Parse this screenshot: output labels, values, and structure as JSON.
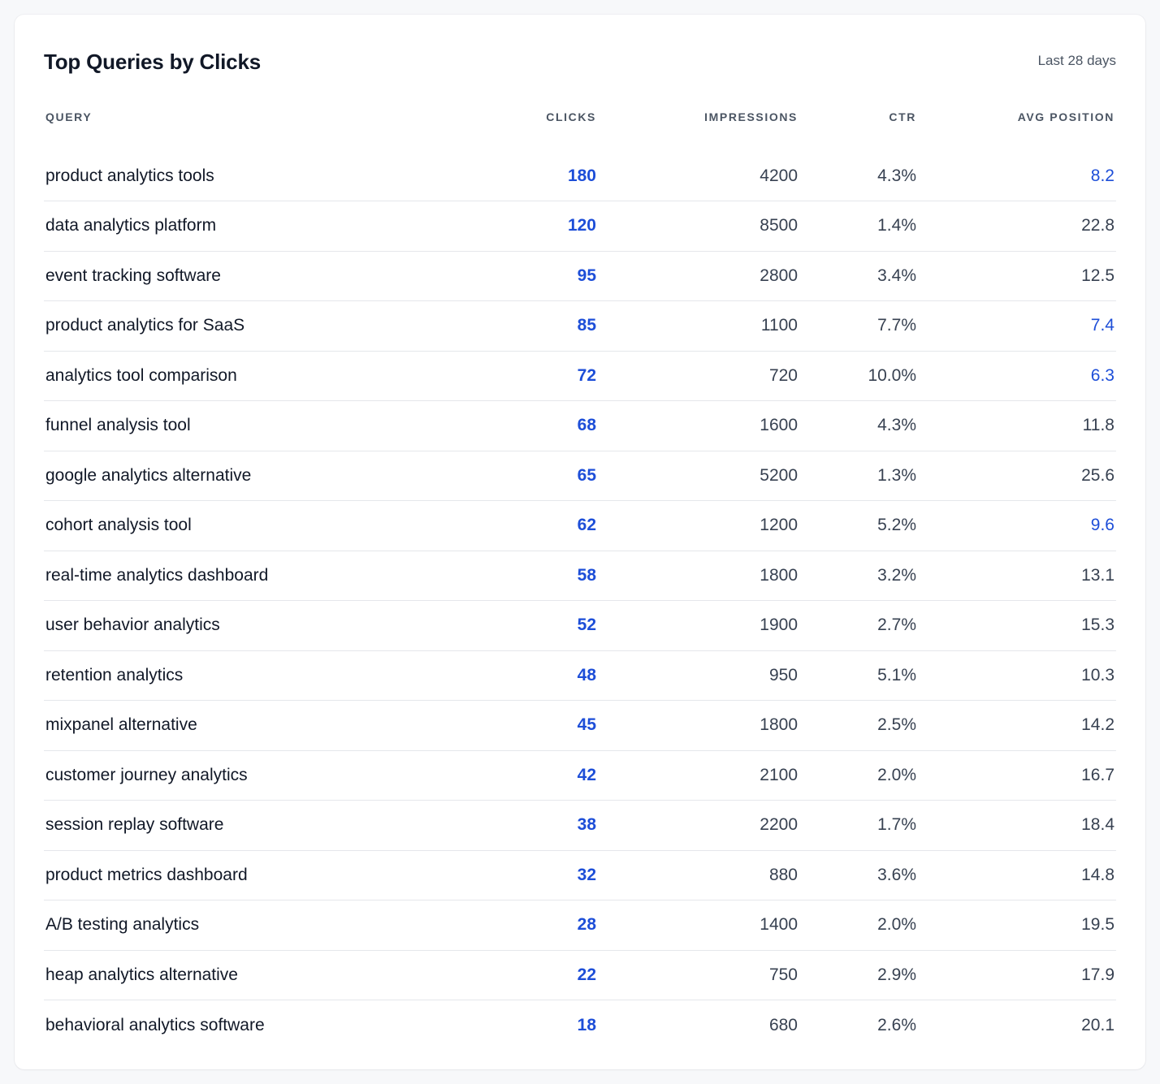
{
  "card": {
    "title": "Top Queries by Clicks",
    "range": "Last 28 days"
  },
  "colors": {
    "accent": "#1d4ed8",
    "text": "#111827",
    "muted": "#4b5563",
    "divider": "#e5e7eb"
  },
  "table": {
    "headers": {
      "query": "QUERY",
      "clicks": "CLICKS",
      "impressions": "IMPRESSIONS",
      "ctr": "CTR",
      "avg_position": "AVG POSITION"
    },
    "rows": [
      {
        "query": "product analytics tools",
        "clicks": "180",
        "impressions": "4200",
        "ctr": "4.3%",
        "avg_position": "8.2",
        "highlight": true
      },
      {
        "query": "data analytics platform",
        "clicks": "120",
        "impressions": "8500",
        "ctr": "1.4%",
        "avg_position": "22.8",
        "highlight": false
      },
      {
        "query": "event tracking software",
        "clicks": "95",
        "impressions": "2800",
        "ctr": "3.4%",
        "avg_position": "12.5",
        "highlight": false
      },
      {
        "query": "product analytics for SaaS",
        "clicks": "85",
        "impressions": "1100",
        "ctr": "7.7%",
        "avg_position": "7.4",
        "highlight": true
      },
      {
        "query": "analytics tool comparison",
        "clicks": "72",
        "impressions": "720",
        "ctr": "10.0%",
        "avg_position": "6.3",
        "highlight": true
      },
      {
        "query": "funnel analysis tool",
        "clicks": "68",
        "impressions": "1600",
        "ctr": "4.3%",
        "avg_position": "11.8",
        "highlight": false
      },
      {
        "query": "google analytics alternative",
        "clicks": "65",
        "impressions": "5200",
        "ctr": "1.3%",
        "avg_position": "25.6",
        "highlight": false
      },
      {
        "query": "cohort analysis tool",
        "clicks": "62",
        "impressions": "1200",
        "ctr": "5.2%",
        "avg_position": "9.6",
        "highlight": true
      },
      {
        "query": "real-time analytics dashboard",
        "clicks": "58",
        "impressions": "1800",
        "ctr": "3.2%",
        "avg_position": "13.1",
        "highlight": false
      },
      {
        "query": "user behavior analytics",
        "clicks": "52",
        "impressions": "1900",
        "ctr": "2.7%",
        "avg_position": "15.3",
        "highlight": false
      },
      {
        "query": "retention analytics",
        "clicks": "48",
        "impressions": "950",
        "ctr": "5.1%",
        "avg_position": "10.3",
        "highlight": false
      },
      {
        "query": "mixpanel alternative",
        "clicks": "45",
        "impressions": "1800",
        "ctr": "2.5%",
        "avg_position": "14.2",
        "highlight": false
      },
      {
        "query": "customer journey analytics",
        "clicks": "42",
        "impressions": "2100",
        "ctr": "2.0%",
        "avg_position": "16.7",
        "highlight": false
      },
      {
        "query": "session replay software",
        "clicks": "38",
        "impressions": "2200",
        "ctr": "1.7%",
        "avg_position": "18.4",
        "highlight": false
      },
      {
        "query": "product metrics dashboard",
        "clicks": "32",
        "impressions": "880",
        "ctr": "3.6%",
        "avg_position": "14.8",
        "highlight": false
      },
      {
        "query": "A/B testing analytics",
        "clicks": "28",
        "impressions": "1400",
        "ctr": "2.0%",
        "avg_position": "19.5",
        "highlight": false
      },
      {
        "query": "heap analytics alternative",
        "clicks": "22",
        "impressions": "750",
        "ctr": "2.9%",
        "avg_position": "17.9",
        "highlight": false
      },
      {
        "query": "behavioral analytics software",
        "clicks": "18",
        "impressions": "680",
        "ctr": "2.6%",
        "avg_position": "20.1",
        "highlight": false
      }
    ]
  }
}
